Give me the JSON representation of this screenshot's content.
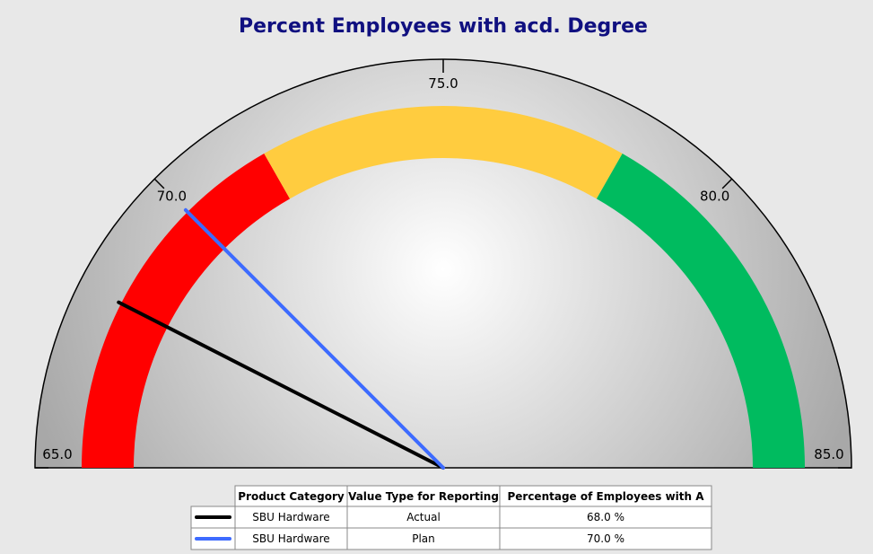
{
  "chart_data": {
    "type": "gauge",
    "title": "Percent Employees with acd. Degree",
    "xlim": [
      65,
      85
    ],
    "xticks": [
      {
        "value": 65,
        "label": "65.0"
      },
      {
        "value": 70,
        "label": "70.0"
      },
      {
        "value": 75,
        "label": "75.0"
      },
      {
        "value": 80,
        "label": "80.0"
      },
      {
        "value": 85,
        "label": "85.0"
      }
    ],
    "bands": [
      {
        "from": 65,
        "to": 71.7,
        "color": "#ff0000"
      },
      {
        "from": 71.7,
        "to": 78.3,
        "color": "#ffcc3f"
      },
      {
        "from": 78.3,
        "to": 85,
        "color": "#00bb5f"
      }
    ],
    "table_headers": [
      "Product Category",
      "Value Type for Reporting",
      "Percentage of Employees with A"
    ],
    "series": [
      {
        "name": "Actual",
        "category": "SBU Hardware",
        "color": "#000000",
        "values": [
          68
        ],
        "value_labels": [
          "68.0 %"
        ]
      },
      {
        "name": "Plan",
        "category": "SBU Hardware",
        "color": "#3d6bff",
        "values": [
          70
        ],
        "value_labels": [
          "70.0 %"
        ]
      }
    ]
  }
}
